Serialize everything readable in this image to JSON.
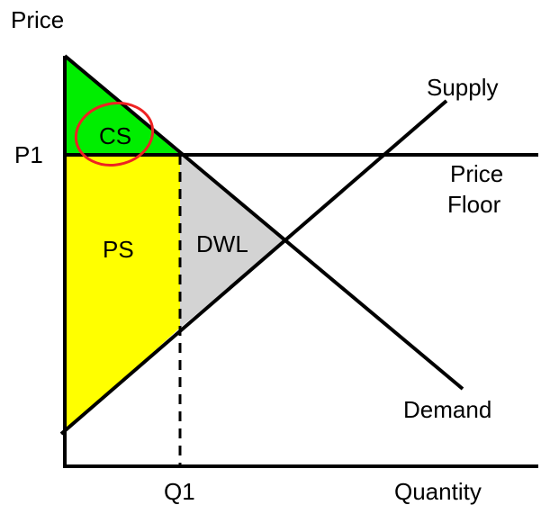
{
  "axes": {
    "y_label": "Price",
    "x_label": "Quantity"
  },
  "ticks": {
    "price_level": "P1",
    "quantity_level": "Q1"
  },
  "curves": {
    "supply": "Supply",
    "demand": "Demand",
    "price_floor_line1": "Price",
    "price_floor_line2": "Floor"
  },
  "regions": {
    "consumer_surplus": "CS",
    "producer_surplus": "PS",
    "deadweight_loss": "DWL"
  },
  "colors": {
    "consumer_surplus": "#00ee00",
    "producer_surplus": "#ffff00",
    "deadweight_loss": "#d3d3d3",
    "annotation_circle": "#ee2222",
    "lines": "#000000"
  }
}
